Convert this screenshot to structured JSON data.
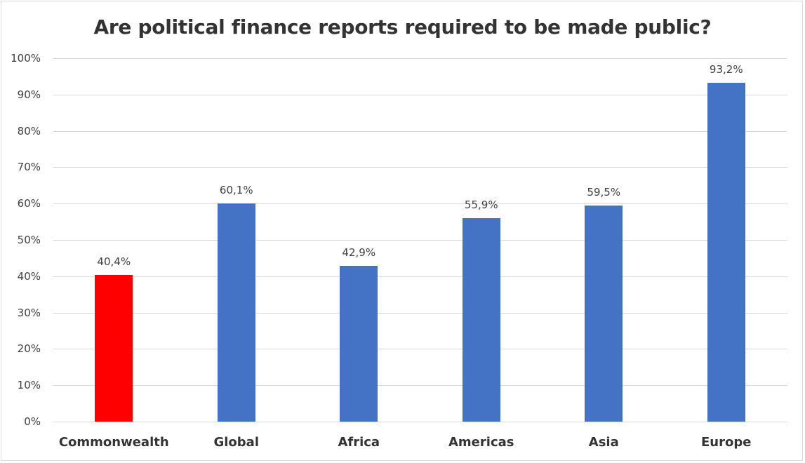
{
  "chart_data": {
    "type": "bar",
    "title": "Are political finance reports required to be made public?",
    "categories": [
      "Commonwealth",
      "Global",
      "Africa",
      "Americas",
      "Asia",
      "Europe"
    ],
    "values": [
      40.4,
      60.1,
      42.9,
      55.9,
      59.5,
      93.2
    ],
    "value_labels": [
      "40,4%",
      "60,1%",
      "42,9%",
      "55,9%",
      "59,5%",
      "93,2%"
    ],
    "colors": [
      "#ff0000",
      "#4472c4",
      "#4472c4",
      "#4472c4",
      "#4472c4",
      "#4472c4"
    ],
    "xlabel": "",
    "ylabel": "",
    "ylim": [
      0,
      100
    ],
    "yticks": [
      "0%",
      "10%",
      "20%",
      "30%",
      "40%",
      "50%",
      "60%",
      "70%",
      "80%",
      "90%",
      "100%"
    ],
    "grid": true,
    "legend": "none"
  }
}
